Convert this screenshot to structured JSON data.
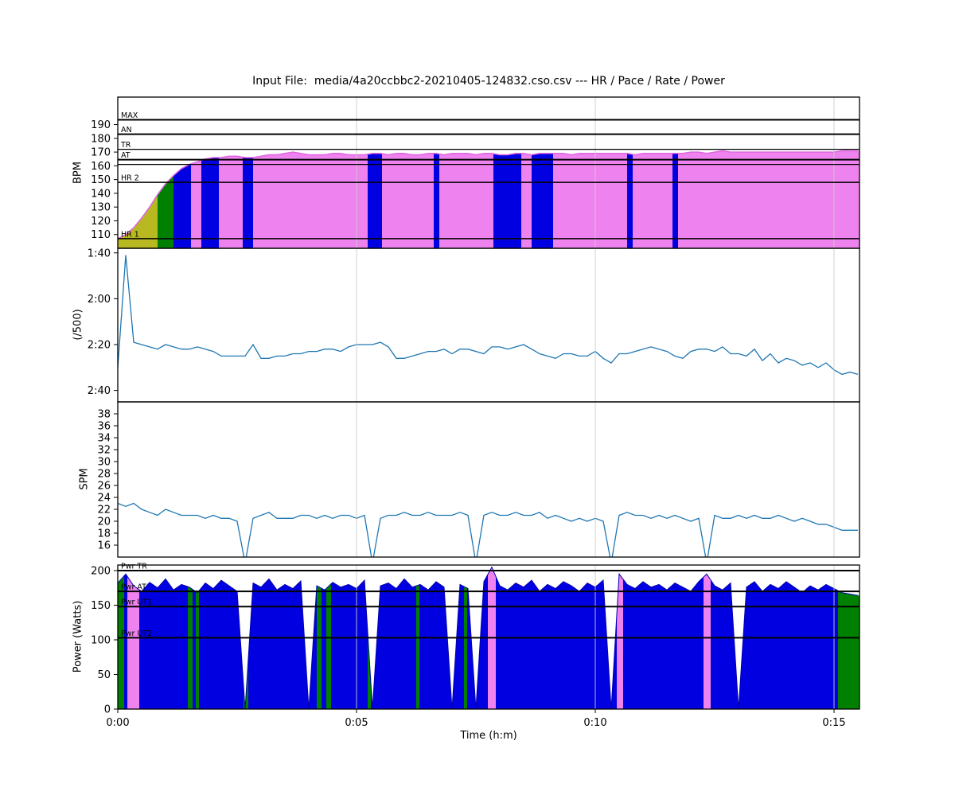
{
  "title": "Input File:  media/4a20ccbbc2-20210405-124832.cso.csv --- HR / Pace / Rate / Power",
  "xlabel": "Time (h:m)",
  "x_ticks": [
    {
      "t": 0,
      "label": "0:00"
    },
    {
      "t": 300,
      "label": "0:05"
    },
    {
      "t": 600,
      "label": "0:10"
    },
    {
      "t": 900,
      "label": "0:15"
    }
  ],
  "colors": {
    "pink": "#ee82ee",
    "blue": "#0000e1",
    "green": "#008000",
    "olive": "#b8b821",
    "line_blue": "#1f77b4",
    "hr_edge": "#e066e0",
    "power_edge": "#0000b0",
    "grid": "#cccccc",
    "zone_line": "#000000"
  },
  "chart_data": [
    {
      "name": "heart-rate",
      "type": "area",
      "ylabel": "BPM",
      "ylim": [
        100,
        210
      ],
      "inverted": false,
      "line_color": "hr_edge",
      "line_width": 1.5,
      "yticks": [
        {
          "v": 190,
          "label": "190"
        },
        {
          "v": 180,
          "label": "180"
        },
        {
          "v": 170,
          "label": "170"
        },
        {
          "v": 160,
          "label": "160"
        },
        {
          "v": 150,
          "label": "150"
        },
        {
          "v": 140,
          "label": "140"
        },
        {
          "v": 130,
          "label": "130"
        },
        {
          "v": 120,
          "label": "120"
        },
        {
          "v": 110,
          "label": "110"
        }
      ],
      "zones": [
        {
          "label": "MAX",
          "value": 193.5,
          "lw": 2
        },
        {
          "label": "AN",
          "value": 183,
          "lw": 2
        },
        {
          "label": "TR",
          "value": 172,
          "lw": 1.2
        },
        {
          "label": "AT",
          "value": 164.5,
          "lw": 2
        },
        {
          "label": "",
          "value": 161,
          "lw": 1.2
        },
        {
          "label": "HR 2",
          "value": 148,
          "lw": 1.5
        },
        {
          "label": "HR 1",
          "value": 107,
          "lw": 1.5
        }
      ],
      "fill_segments": [
        {
          "from": 0,
          "to": 50,
          "color": "olive"
        },
        {
          "from": 50,
          "to": 70,
          "color": "green"
        },
        {
          "from": 70,
          "to": 92,
          "color": "blue"
        },
        {
          "from": 92,
          "to": 105,
          "color": "pink"
        },
        {
          "from": 105,
          "to": 127,
          "color": "blue"
        },
        {
          "from": 127,
          "to": 157,
          "color": "pink"
        },
        {
          "from": 157,
          "to": 170,
          "color": "blue"
        },
        {
          "from": 170,
          "to": 314,
          "color": "pink"
        },
        {
          "from": 314,
          "to": 332,
          "color": "blue"
        },
        {
          "from": 332,
          "to": 397,
          "color": "pink"
        },
        {
          "from": 397,
          "to": 404,
          "color": "blue"
        },
        {
          "from": 404,
          "to": 472,
          "color": "pink"
        },
        {
          "from": 472,
          "to": 507,
          "color": "blue"
        },
        {
          "from": 507,
          "to": 520,
          "color": "pink"
        },
        {
          "from": 520,
          "to": 547,
          "color": "blue"
        },
        {
          "from": 547,
          "to": 640,
          "color": "pink"
        },
        {
          "from": 640,
          "to": 647,
          "color": "blue"
        },
        {
          "from": 647,
          "to": 697,
          "color": "pink"
        },
        {
          "from": 697,
          "to": 704,
          "color": "blue"
        },
        {
          "from": 704,
          "to": 932,
          "color": "pink"
        }
      ],
      "series": {
        "t_step": 10,
        "values": [
          107,
          110,
          115,
          122,
          130,
          139,
          147,
          153,
          158,
          161,
          163,
          165,
          166,
          166,
          167,
          167,
          166,
          166,
          167,
          168,
          168,
          169,
          170,
          169,
          168,
          168,
          168,
          169,
          169,
          168,
          168,
          168,
          169,
          169,
          168,
          169,
          169,
          168,
          168,
          169,
          169,
          168,
          169,
          169,
          169,
          168,
          169,
          169,
          168,
          168,
          169,
          169,
          168,
          169,
          169,
          169,
          169,
          168,
          169,
          169,
          169,
          169,
          169,
          169,
          169,
          168,
          169,
          169,
          169,
          169,
          169,
          169,
          170,
          170,
          169,
          170,
          171,
          170,
          170,
          170,
          170,
          170,
          170,
          170,
          170,
          170,
          170,
          170,
          170,
          170,
          170,
          171,
          171,
          171
        ]
      }
    },
    {
      "name": "pace",
      "type": "line",
      "ylabel": "(/500)",
      "ylim": [
        98,
        165
      ],
      "inverted": true,
      "line_color": "line_blue",
      "line_width": 1.3,
      "yticks": [
        {
          "v": 100,
          "label": "1:40"
        },
        {
          "v": 120,
          "label": "2:00"
        },
        {
          "v": 140,
          "label": "2:20"
        },
        {
          "v": 160,
          "label": "2:40"
        }
      ],
      "series": {
        "t_step": 10,
        "values": [
          150,
          101,
          139,
          140,
          141,
          142,
          140,
          141,
          142,
          142,
          141,
          142,
          143,
          145,
          145,
          145,
          145,
          140,
          146,
          146,
          145,
          145,
          144,
          144,
          143,
          143,
          142,
          142,
          143,
          141,
          140,
          140,
          140,
          139,
          141,
          146,
          146,
          145,
          144,
          143,
          143,
          142,
          144,
          142,
          142,
          143,
          144,
          141,
          141,
          142,
          141,
          140,
          142,
          144,
          145,
          146,
          144,
          144,
          145,
          145,
          143,
          146,
          148,
          144,
          144,
          143,
          142,
          141,
          142,
          143,
          145,
          146,
          143,
          142,
          142,
          143,
          141,
          144,
          144,
          145,
          142,
          147,
          144,
          148,
          146,
          147,
          149,
          148,
          150,
          148,
          151,
          153,
          152,
          153
        ]
      }
    },
    {
      "name": "stroke-rate",
      "type": "line",
      "ylabel": "SPM",
      "ylim": [
        14,
        40
      ],
      "inverted": false,
      "line_color": "line_blue",
      "line_width": 1.3,
      "yticks": [
        {
          "v": 38,
          "label": "38"
        },
        {
          "v": 36,
          "label": "36"
        },
        {
          "v": 34,
          "label": "34"
        },
        {
          "v": 32,
          "label": "32"
        },
        {
          "v": 30,
          "label": "30"
        },
        {
          "v": 28,
          "label": "28"
        },
        {
          "v": 26,
          "label": "26"
        },
        {
          "v": 24,
          "label": "24"
        },
        {
          "v": 22,
          "label": "22"
        },
        {
          "v": 20,
          "label": "20"
        },
        {
          "v": 18,
          "label": "18"
        },
        {
          "v": 16,
          "label": "16"
        }
      ],
      "series": {
        "t_step": 10,
        "values": [
          23,
          22.5,
          23,
          22,
          21.5,
          21,
          22,
          21.5,
          21,
          21,
          21,
          20.5,
          21,
          20.5,
          20.5,
          20,
          13,
          20.5,
          21,
          21.5,
          20.5,
          20.5,
          20.5,
          21,
          21,
          20.5,
          21,
          20.5,
          21,
          21,
          20.5,
          21,
          13,
          20.5,
          21,
          21,
          21.5,
          21,
          21,
          21.5,
          21,
          21,
          21,
          21.5,
          21,
          13,
          21,
          21.5,
          21,
          21,
          21.5,
          21,
          21,
          21.5,
          20.5,
          21,
          20.5,
          20,
          20.5,
          20,
          20.5,
          20,
          13,
          21,
          21.5,
          21,
          21,
          20.5,
          21,
          20.5,
          21,
          20.5,
          20,
          20.5,
          13,
          21,
          20.5,
          20.5,
          21,
          20.5,
          21,
          20.5,
          20.5,
          21,
          20.5,
          20,
          20.5,
          20,
          19.5,
          19.5,
          19,
          18.5,
          18.5,
          18.5
        ]
      }
    },
    {
      "name": "power",
      "type": "area",
      "ylabel": "Power (Watts)",
      "ylim": [
        0,
        208
      ],
      "inverted": false,
      "line_color": "power_edge",
      "line_width": 1,
      "show_x_ticks": true,
      "yticks": [
        {
          "v": 200,
          "label": "200"
        },
        {
          "v": 150,
          "label": "150"
        },
        {
          "v": 100,
          "label": "100"
        },
        {
          "v": 50,
          "label": "50"
        },
        {
          "v": 0,
          "label": "0"
        }
      ],
      "zones": [
        {
          "label": "Pwr TR",
          "value": 200,
          "lw": 2
        },
        {
          "label": "Pwr AT",
          "value": 170,
          "lw": 2
        },
        {
          "label": "Pwr UT1",
          "value": 148,
          "lw": 2
        },
        {
          "label": "Pwr UT2",
          "value": 103,
          "lw": 2
        }
      ],
      "fill_segments": [
        {
          "from": 0,
          "to": 8,
          "color": "green"
        },
        {
          "from": 8,
          "to": 12,
          "color": "blue"
        },
        {
          "from": 12,
          "to": 27,
          "color": "pink"
        },
        {
          "from": 27,
          "to": 88,
          "color": "blue"
        },
        {
          "from": 88,
          "to": 94,
          "color": "green"
        },
        {
          "from": 94,
          "to": 98,
          "color": "blue"
        },
        {
          "from": 98,
          "to": 102,
          "color": "green"
        },
        {
          "from": 102,
          "to": 158,
          "color": "blue"
        },
        {
          "from": 158,
          "to": 164,
          "color": "green"
        },
        {
          "from": 164,
          "to": 250,
          "color": "blue"
        },
        {
          "from": 250,
          "to": 256,
          "color": "green"
        },
        {
          "from": 256,
          "to": 262,
          "color": "blue"
        },
        {
          "from": 262,
          "to": 268,
          "color": "green"
        },
        {
          "from": 268,
          "to": 314,
          "color": "blue"
        },
        {
          "from": 314,
          "to": 318,
          "color": "green"
        },
        {
          "from": 318,
          "to": 375,
          "color": "blue"
        },
        {
          "from": 375,
          "to": 379,
          "color": "green"
        },
        {
          "from": 379,
          "to": 435,
          "color": "blue"
        },
        {
          "from": 435,
          "to": 439,
          "color": "green"
        },
        {
          "from": 439,
          "to": 465,
          "color": "blue"
        },
        {
          "from": 465,
          "to": 475,
          "color": "pink"
        },
        {
          "from": 475,
          "to": 627,
          "color": "blue"
        },
        {
          "from": 627,
          "to": 635,
          "color": "pink"
        },
        {
          "from": 635,
          "to": 736,
          "color": "blue"
        },
        {
          "from": 736,
          "to": 745,
          "color": "pink"
        },
        {
          "from": 745,
          "to": 905,
          "color": "blue"
        },
        {
          "from": 905,
          "to": 932,
          "color": "green"
        }
      ],
      "series": {
        "t_step": 10,
        "values": [
          182,
          195,
          178,
          170,
          183,
          175,
          188,
          172,
          180,
          176,
          168,
          182,
          174,
          186,
          178,
          170,
          0,
          182,
          176,
          188,
          172,
          180,
          174,
          185,
          0,
          178,
          172,
          183,
          176,
          180,
          174,
          186,
          0,
          178,
          182,
          174,
          188,
          176,
          180,
          172,
          184,
          176,
          0,
          180,
          174,
          0,
          184,
          205,
          178,
          172,
          182,
          176,
          186,
          170,
          180,
          174,
          184,
          178,
          170,
          182,
          176,
          186,
          0,
          195,
          180,
          174,
          184,
          176,
          180,
          172,
          182,
          176,
          170,
          184,
          195,
          178,
          172,
          182,
          0,
          176,
          184,
          170,
          180,
          174,
          184,
          176,
          168,
          178,
          172,
          180,
          174,
          168,
          166,
          164
        ]
      }
    }
  ]
}
